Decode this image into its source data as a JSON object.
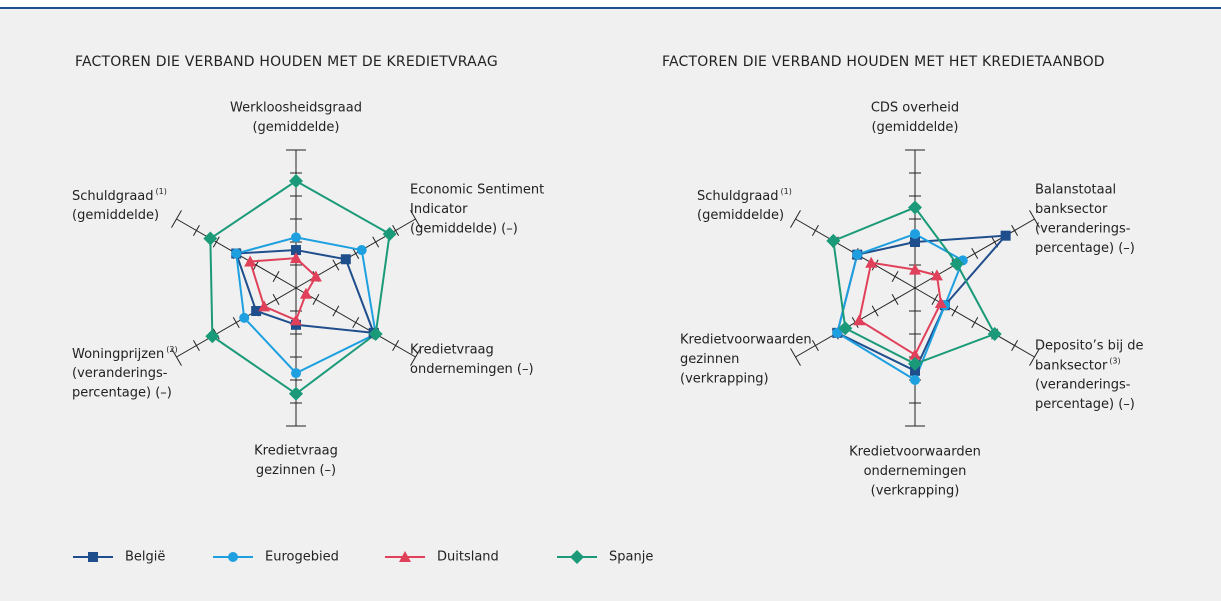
{
  "chart_data": [
    {
      "type": "radar",
      "title": "FACTOREN DIE VERBAND HOUDEN MET DE KREDIETVRAAG",
      "axes": [
        {
          "lines": [
            "Werkloosheidsgraad",
            "(gemiddelde)"
          ]
        },
        {
          "lines": [
            "Economic Sentiment",
            "Indicator",
            "(gemiddelde) (–)"
          ]
        },
        {
          "lines": [
            "Kredietvraag",
            "ondernemingen (–)"
          ]
        },
        {
          "lines": [
            "Kredietvraag",
            "gezinnen (–)"
          ]
        },
        {
          "lines": [
            {
              "text": "Woningprijzen",
              "note": "(2)"
            },
            "(veranderings-",
            "percentage) (–)"
          ]
        },
        {
          "lines": [
            {
              "text": "Schuldgraad",
              "note": "(1)"
            },
            "(gemiddelde)"
          ]
        }
      ],
      "ylim": [
        0,
        6
      ],
      "yticks": [
        1,
        2,
        3,
        4,
        5,
        6
      ],
      "series": [
        {
          "name": "België",
          "color": "#1f4e8c",
          "marker": "square",
          "values": [
            1.65,
            2.5,
            3.9,
            1.6,
            2.0,
            3.0
          ]
        },
        {
          "name": "Eurogebied",
          "color": "#1ea0e0",
          "marker": "circle",
          "values": [
            2.2,
            3.3,
            4.0,
            3.7,
            2.6,
            3.0
          ]
        },
        {
          "name": "Duitsland",
          "color": "#e0405a",
          "marker": "triangle",
          "values": [
            1.3,
            1.0,
            0.5,
            1.4,
            1.6,
            2.3
          ]
        },
        {
          "name": "Spanje",
          "color": "#1a9a78",
          "marker": "diamond",
          "values": [
            4.65,
            4.7,
            4.0,
            4.6,
            4.2,
            4.3
          ]
        }
      ]
    },
    {
      "type": "radar",
      "title": "FACTOREN DIE VERBAND HOUDEN MET HET KREDIETAANBOD",
      "axes": [
        {
          "lines": [
            "CDS overheid",
            "(gemiddelde)"
          ]
        },
        {
          "lines": [
            "Balanstotaal",
            "banksector",
            "(veranderings-",
            "percentage) (–)"
          ]
        },
        {
          "lines": [
            "Deposito’s bij de",
            {
              "text": "banksector",
              "note": "(3)"
            },
            "(veranderings-",
            "percentage) (–)"
          ]
        },
        {
          "lines": [
            "Kredietvoorwaarden",
            "ondernemingen",
            "(verkrapping)"
          ]
        },
        {
          "lines": [
            "Kredietvoorwaarden",
            "gezinnen",
            "(verkrapping)"
          ]
        },
        {
          "lines": [
            {
              "text": "Schuldgraad",
              "note": "(1)"
            },
            "(gemiddelde)"
          ]
        }
      ],
      "ylim": [
        0,
        6
      ],
      "yticks": [
        1,
        2,
        3,
        4,
        5,
        6
      ],
      "series": [
        {
          "color": "#1f4e8c",
          "marker": "square",
          "values": [
            2.0,
            4.55,
            1.5,
            3.6,
            3.9,
            2.9
          ]
        },
        {
          "color": "#1ea0e0",
          "marker": "circle",
          "values": [
            2.35,
            2.4,
            1.5,
            4.0,
            3.9,
            2.9
          ]
        },
        {
          "color": "#e0405a",
          "marker": "triangle",
          "values": [
            0.8,
            1.1,
            1.3,
            2.9,
            2.8,
            2.2
          ]
        },
        {
          "color": "#1a9a78",
          "marker": "diamond",
          "values": [
            3.5,
            2.1,
            4.0,
            3.3,
            3.5,
            4.1
          ]
        }
      ]
    }
  ]
}
